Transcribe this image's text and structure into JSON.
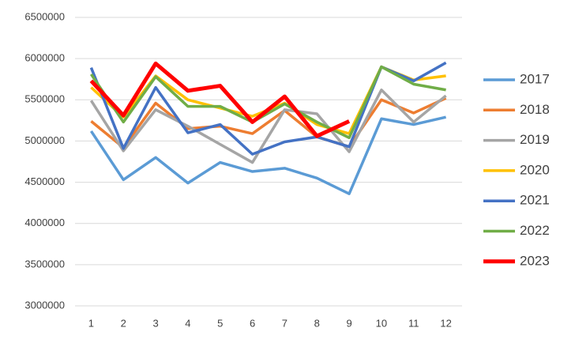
{
  "chart_data": {
    "type": "line",
    "categories": [
      "1",
      "2",
      "3",
      "4",
      "5",
      "6",
      "7",
      "8",
      "9",
      "10",
      "11",
      "12"
    ],
    "ylim": [
      3000000,
      6500000
    ],
    "yticks": [
      3000000,
      3500000,
      4000000,
      4500000,
      5000000,
      5500000,
      6000000,
      6500000
    ],
    "grid": true,
    "legend": "right",
    "series": [
      {
        "name": "2017",
        "color": "#5B9BD5",
        "values": [
          5120000,
          4530000,
          4800000,
          4490000,
          4740000,
          4630000,
          4670000,
          4550000,
          4360000,
          5270000,
          5200000,
          5290000
        ]
      },
      {
        "name": "2018",
        "color": "#ED7D31",
        "values": [
          5240000,
          4920000,
          5460000,
          5150000,
          5180000,
          5090000,
          5370000,
          5050000,
          4930000,
          5500000,
          5340000,
          5520000
        ]
      },
      {
        "name": "2019",
        "color": "#A5A5A5",
        "values": [
          5490000,
          4880000,
          5380000,
          5180000,
          4960000,
          4740000,
          5380000,
          5330000,
          4870000,
          5620000,
          5230000,
          5550000
        ]
      },
      {
        "name": "2020",
        "color": "#FFC000",
        "values": [
          5650000,
          5290000,
          5790000,
          5500000,
          5400000,
          5300000,
          5460000,
          5200000,
          5090000,
          5900000,
          5740000,
          5790000
        ]
      },
      {
        "name": "2021",
        "color": "#4472C4",
        "values": [
          5890000,
          4910000,
          5650000,
          5100000,
          5200000,
          4840000,
          4990000,
          5050000,
          4930000,
          5900000,
          5730000,
          5950000
        ]
      },
      {
        "name": "2022",
        "color": "#70AD47",
        "values": [
          5810000,
          5230000,
          5780000,
          5420000,
          5420000,
          5230000,
          5450000,
          5230000,
          5040000,
          5900000,
          5690000,
          5620000
        ]
      },
      {
        "name": "2023",
        "color": "#FF0000",
        "values": [
          5730000,
          5310000,
          5940000,
          5610000,
          5670000,
          5230000,
          5540000,
          5060000,
          5240000,
          null,
          null,
          null
        ]
      }
    ]
  }
}
